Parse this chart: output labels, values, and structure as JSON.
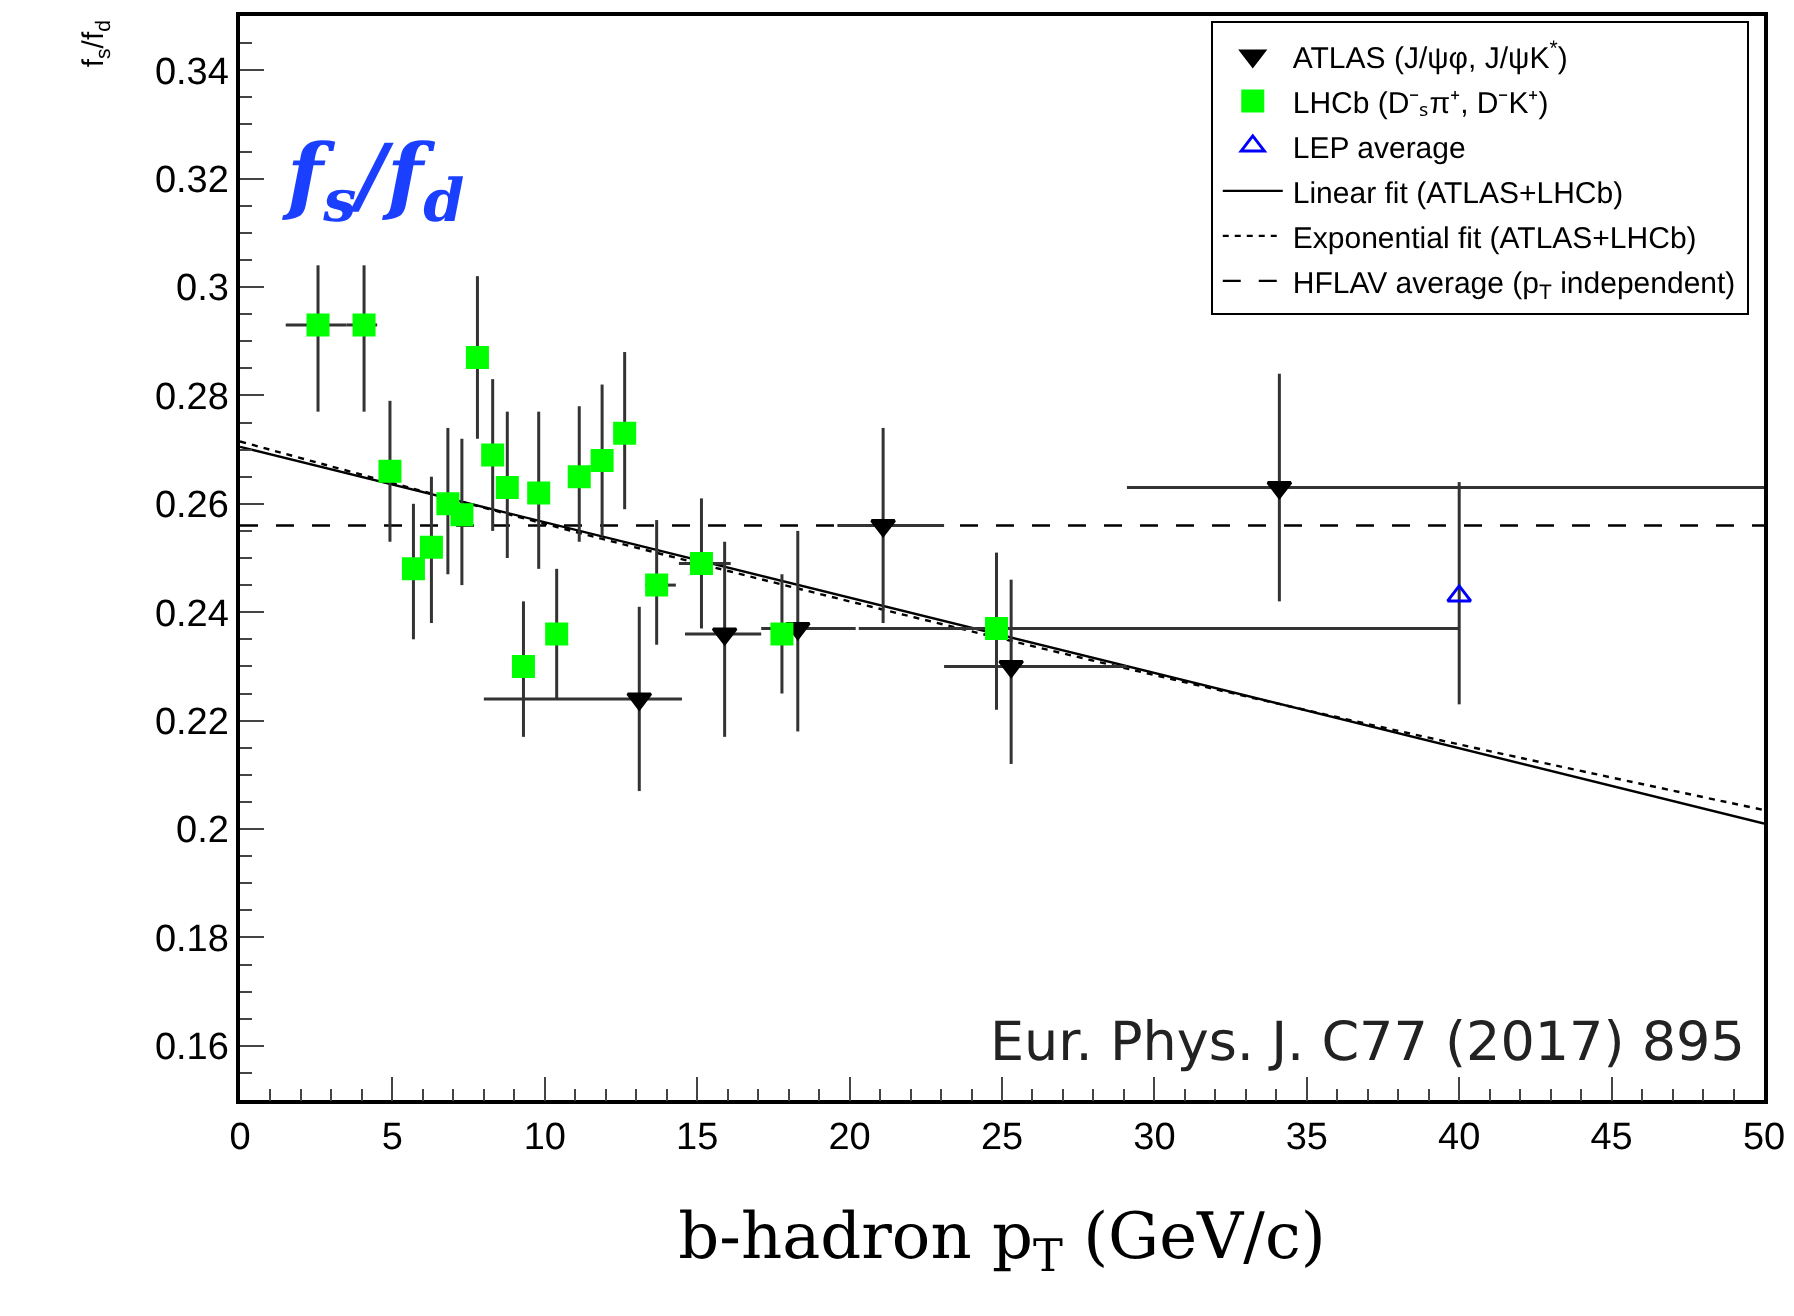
{
  "chart_data": {
    "type": "scatter",
    "title": "f$_{s}$/f$_{d}$",
    "xlabel": "b-hadron p$_{T}$ (GeV/c)",
    "ylabel": "f$_{s}$/f$_{d}$",
    "annotations": [
      "Eur. Phys. J. C77 (2017) 895"
    ],
    "xlim": [
      0,
      50
    ],
    "xticks": [
      0,
      5,
      10,
      15,
      20,
      25,
      30,
      35,
      40,
      45,
      50
    ],
    "ylim": [
      0.15,
      0.35
    ],
    "yticks": [
      0.16,
      0.18,
      0.2,
      0.22,
      0.24,
      0.26,
      0.28,
      0.3,
      0.32,
      0.34
    ],
    "grid": false,
    "legend": "top right",
    "series": [
      {
        "name": "ATLAS (J/ψφ, J/ψK$^{*}$)",
        "marker": "triangle-down",
        "color": "#000000",
        "x": [
          13.1,
          15.9,
          18.3,
          21.1,
          25.3,
          34.1
        ],
        "values": [
          0.224,
          0.236,
          0.237,
          0.256,
          0.23,
          0.263
        ],
        "errors": [
          [
            0.207,
            0.241
          ],
          [
            0.217,
            0.253
          ],
          [
            0.218,
            0.255
          ],
          [
            0.238,
            0.274
          ],
          [
            0.212,
            0.246
          ],
          [
            0.242,
            0.284
          ]
        ],
        "xerrors": [
          [
            8,
            14.5
          ],
          [
            14.6,
            17.1
          ],
          [
            17.1,
            20.2
          ],
          [
            19.6,
            23.1
          ],
          [
            23.1,
            29.1
          ],
          [
            29.1,
            50
          ]
        ]
      },
      {
        "name": "LHCb (D⁻ₛπ⁺, D⁻K⁺)",
        "marker": "square",
        "color": "#00ff00",
        "x": [
          2.56,
          4.07,
          4.92,
          5.69,
          6.28,
          6.82,
          7.28,
          7.79,
          8.29,
          8.77,
          9.3,
          9.8,
          10.39,
          11.13,
          11.88,
          12.62,
          13.67,
          15.14,
          17.78,
          24.82
        ],
        "values": [
          0.293,
          0.293,
          0.266,
          0.248,
          0.252,
          0.26,
          0.258,
          0.287,
          0.269,
          0.263,
          0.23,
          0.262,
          0.236,
          0.265,
          0.268,
          0.273,
          0.245,
          0.249,
          0.236,
          0.237
        ],
        "errors": [
          [
            0.277,
            0.304
          ],
          [
            0.277,
            0.304
          ],
          [
            0.253,
            0.279
          ],
          [
            0.235,
            0.26
          ],
          [
            0.238,
            0.265
          ],
          [
            0.247,
            0.274
          ],
          [
            0.245,
            0.272
          ],
          [
            0.272,
            0.302
          ],
          [
            0.255,
            0.283
          ],
          [
            0.25,
            0.277
          ],
          [
            0.217,
            0.242
          ],
          [
            0.248,
            0.277
          ],
          [
            0.224,
            0.248
          ],
          [
            0.253,
            0.278
          ],
          [
            0.254,
            0.282
          ],
          [
            0.259,
            0.288
          ],
          [
            0.234,
            0.257
          ],
          [
            0.237,
            0.261
          ],
          [
            0.225,
            0.247
          ],
          [
            0.222,
            0.251
          ]
        ],
        "xerrors": [
          [
            1.5,
            3.5
          ],
          [
            3.5,
            4.5
          ],
          null,
          null,
          null,
          null,
          null,
          null,
          null,
          null,
          null,
          null,
          null,
          null,
          null,
          null,
          [
            13.3,
            14.3
          ],
          [
            14.4,
            16.1
          ],
          null,
          [
            20.3,
            40
          ]
        ]
      },
      {
        "name": "LEP average",
        "marker": "triangle-open",
        "color": "#0000ff",
        "x": [
          40
        ],
        "values": [
          0.243
        ],
        "errors": [
          [
            0.223,
            0.264
          ]
        ]
      },
      {
        "name": "Linear fit (ATLAS+LHCb)",
        "type": "line",
        "line_style": "solid",
        "color": "#000000",
        "x": [
          0,
          50
        ],
        "values": [
          0.2705,
          0.201
        ]
      },
      {
        "name": "Exponential fit (ATLAS+LHCb)",
        "type": "line",
        "line_style": "dotted",
        "color": "#000000",
        "x": [
          0,
          10,
          20,
          30,
          40,
          50
        ],
        "values": [
          0.2715,
          0.2563,
          0.242,
          0.2284,
          0.2156,
          0.2035
        ]
      },
      {
        "name": "HFLAV average (p$_{T}$ independent)",
        "type": "line",
        "line_style": "dashed",
        "color": "#000000",
        "x": [
          0,
          50
        ],
        "values": [
          0.256,
          0.256
        ]
      }
    ]
  }
}
